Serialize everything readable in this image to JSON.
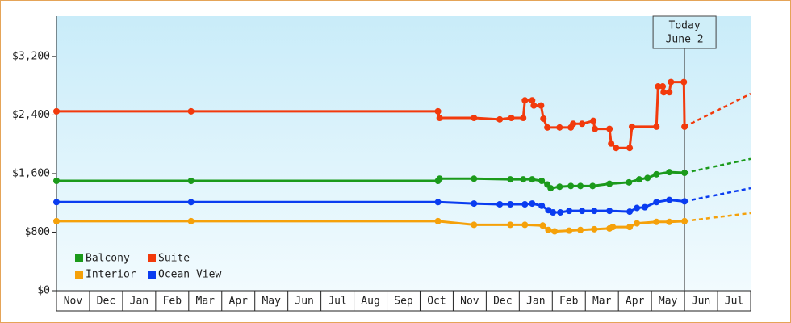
{
  "chart_data": {
    "type": "line",
    "categories": [
      "Nov",
      "Dec",
      "Jan",
      "Feb",
      "Mar",
      "Apr",
      "May",
      "Jun",
      "Jul",
      "Aug",
      "Sep",
      "Oct",
      "Nov",
      "Dec",
      "Jan",
      "Feb",
      "Mar",
      "Apr",
      "May",
      "Jun",
      "Jul"
    ],
    "xlim": [
      0,
      21
    ],
    "ylim": [
      0,
      3750
    ],
    "yticks": [
      {
        "value": 0,
        "label": "$0"
      },
      {
        "value": 800,
        "label": "$800"
      },
      {
        "value": 1600,
        "label": "$1,600"
      },
      {
        "value": 2400,
        "label": "$2,400"
      },
      {
        "value": 3200,
        "label": "$3,200"
      }
    ],
    "today": {
      "x": 19.0,
      "label": "Today",
      "date": "June 2"
    },
    "series": [
      {
        "name": "Balcony",
        "color": "#1b9a1b",
        "x": [
          0.0,
          4.07,
          11.54,
          11.59,
          12.63,
          13.73,
          14.12,
          14.39,
          14.68,
          14.85,
          14.95,
          15.22,
          15.56,
          15.85,
          16.22,
          16.73,
          17.32,
          17.63,
          17.88,
          18.15,
          18.54,
          19.0
        ],
        "values": [
          1500,
          1500,
          1500,
          1530,
          1530,
          1520,
          1520,
          1520,
          1500,
          1450,
          1400,
          1420,
          1430,
          1430,
          1430,
          1460,
          1480,
          1520,
          1540,
          1590,
          1620,
          1610
        ],
        "projection": {
          "x": [
            19.0,
            21
          ],
          "values": [
            1610,
            1800
          ]
        }
      },
      {
        "name": "Suite",
        "color": "#f23a0c",
        "x": [
          0.0,
          4.07,
          11.54,
          11.59,
          12.63,
          13.41,
          13.76,
          14.12,
          14.17,
          14.39,
          14.44,
          14.66,
          14.73,
          14.85,
          15.22,
          15.56,
          15.63,
          15.9,
          16.24,
          16.29,
          16.73,
          16.78,
          16.93,
          17.34,
          17.41,
          18.15,
          18.2,
          18.34,
          18.37,
          18.54,
          18.59,
          18.98,
          19.0
        ],
        "values": [
          2450,
          2450,
          2450,
          2360,
          2360,
          2340,
          2360,
          2360,
          2600,
          2600,
          2530,
          2530,
          2350,
          2230,
          2230,
          2230,
          2280,
          2280,
          2320,
          2210,
          2210,
          2010,
          1950,
          1950,
          2240,
          2240,
          2790,
          2790,
          2710,
          2710,
          2850,
          2850,
          2240
        ],
        "projection": {
          "x": [
            19.0,
            21
          ],
          "values": [
            2240,
            2690
          ]
        }
      },
      {
        "name": "Interior",
        "color": "#f5a10a",
        "x": [
          0.0,
          4.07,
          11.54,
          12.63,
          13.73,
          14.17,
          14.71,
          14.88,
          15.07,
          15.51,
          15.85,
          16.27,
          16.73,
          16.83,
          17.34,
          17.56,
          18.15,
          18.54,
          19.0
        ],
        "values": [
          950,
          950,
          950,
          900,
          900,
          900,
          890,
          830,
          810,
          820,
          830,
          840,
          850,
          870,
          870,
          920,
          940,
          940,
          950
        ],
        "projection": {
          "x": [
            19.0,
            21
          ],
          "values": [
            950,
            1060
          ]
        }
      },
      {
        "name": "Ocean View",
        "color": "#0a3cf0",
        "x": [
          0.0,
          4.07,
          11.54,
          12.63,
          13.41,
          13.73,
          14.17,
          14.39,
          14.68,
          14.88,
          15.02,
          15.24,
          15.51,
          15.9,
          16.27,
          16.73,
          17.34,
          17.56,
          17.8,
          18.15,
          18.54,
          19.0
        ],
        "values": [
          1210,
          1210,
          1210,
          1190,
          1180,
          1180,
          1180,
          1190,
          1160,
          1100,
          1070,
          1070,
          1090,
          1090,
          1090,
          1090,
          1080,
          1130,
          1140,
          1210,
          1240,
          1220
        ],
        "projection": {
          "x": [
            19.0,
            21
          ],
          "values": [
            1220,
            1400
          ]
        }
      }
    ]
  }
}
